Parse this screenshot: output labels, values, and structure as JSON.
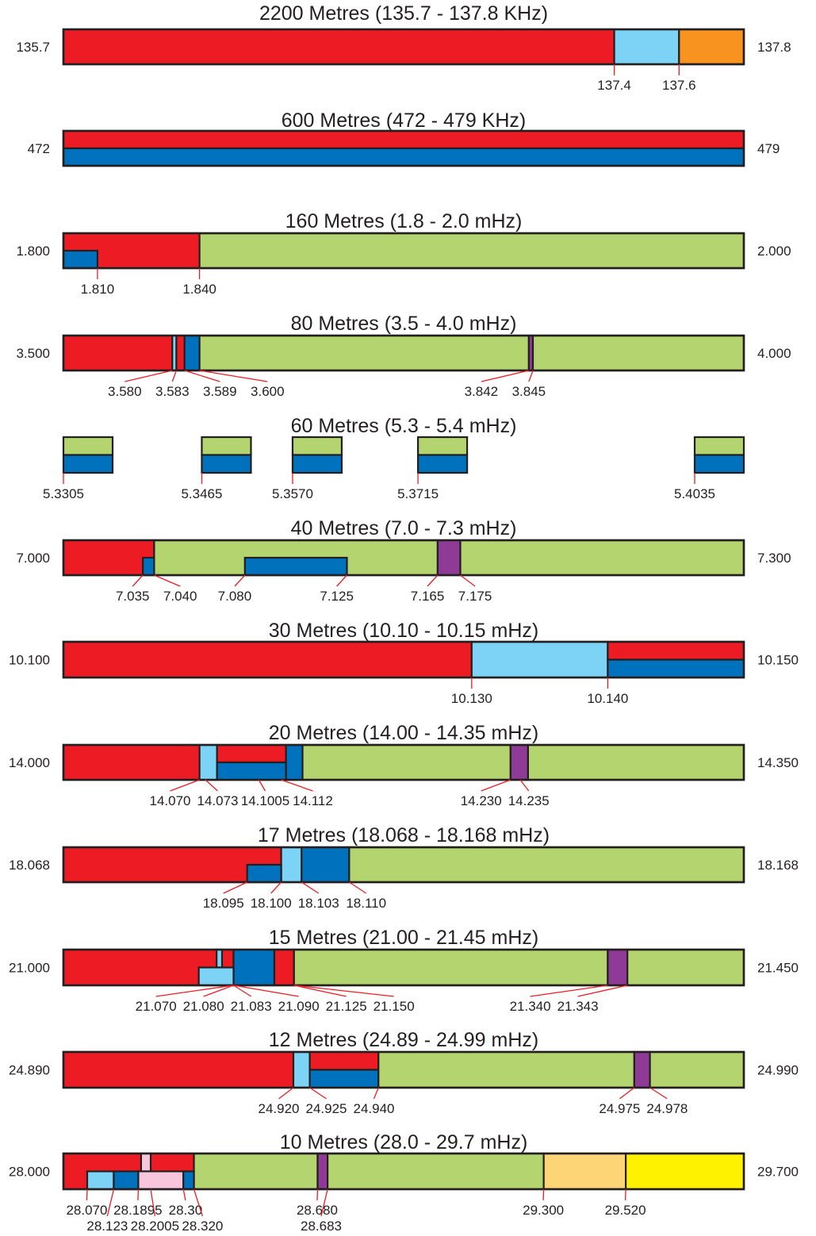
{
  "colors": {
    "red": "#ed1c24",
    "lightblue": "#7dd3f5",
    "blue": "#0071bc",
    "orange": "#f7931e",
    "green": "#b4d470",
    "purple": "#8e3a96",
    "pink": "#f7c6dc",
    "lightorange": "#fdd576",
    "yellow": "#fff200",
    "outline": "#231f20",
    "tickline": "#ed1c24"
  },
  "bands": [
    {
      "title": "2200 Metres (135.7 - 137.8 KHz)",
      "left_label": "135.7",
      "right_label": "137.8",
      "segments": [
        {
          "color": "red",
          "from": 135.7,
          "to": 137.4
        },
        {
          "color": "lightblue",
          "from": 137.4,
          "to": 137.6
        },
        {
          "color": "orange",
          "from": 137.6,
          "to": 137.8
        }
      ],
      "ticks": [
        {
          "label": "137.4",
          "at": 137.4
        },
        {
          "label": "137.6",
          "at": 137.6
        }
      ]
    },
    {
      "title": "600 Metres (472 - 479 KHz)",
      "left_label": "472",
      "right_label": "479",
      "segments": [
        {
          "color": "red",
          "from": 472,
          "to": 479,
          "rows": "top"
        },
        {
          "color": "blue",
          "from": 472,
          "to": 479,
          "rows": "bottom"
        }
      ],
      "ticks": []
    },
    {
      "title": "160 Metres (1.8 - 2.0 mHz)",
      "left_label": "1.800",
      "right_label": "2.000",
      "segments": [
        {
          "color": "red",
          "from": 1.8,
          "to": 1.84
        },
        {
          "color": "green",
          "from": 1.84,
          "to": 2.0
        },
        {
          "color": "blue",
          "from": 1.8,
          "to": 1.81,
          "rows": "bottom"
        }
      ],
      "ticks": [
        {
          "label": "1.810",
          "at": 1.81
        },
        {
          "label": "1.840",
          "at": 1.84
        }
      ]
    },
    {
      "title": "80 Metres (3.5 - 4.0 mHz)",
      "left_label": "3.500",
      "right_label": "4.000",
      "segments": [
        {
          "color": "red",
          "from": 3.5,
          "to": 3.58
        },
        {
          "color": "lightblue",
          "from": 3.58,
          "to": 3.583
        },
        {
          "color": "red",
          "from": 3.583,
          "to": 3.589
        },
        {
          "color": "blue",
          "from": 3.589,
          "to": 3.6
        },
        {
          "color": "green",
          "from": 3.6,
          "to": 3.842
        },
        {
          "color": "purple",
          "from": 3.842,
          "to": 3.845
        },
        {
          "color": "green",
          "from": 3.845,
          "to": 4.0
        }
      ],
      "ticks": [
        {
          "label": "3.580",
          "at": 3.58
        },
        {
          "label": "3.583",
          "at": 3.583
        },
        {
          "label": "3.589",
          "at": 3.589
        },
        {
          "label": "3.600",
          "at": 3.6
        },
        {
          "label": "3.842",
          "at": 3.842
        },
        {
          "label": "3.845",
          "at": 3.845
        }
      ]
    },
    {
      "title": "60 Metres (5.3 - 5.4 mHz)",
      "left_label": "",
      "right_label": "",
      "channels": [
        {
          "label": "5.3305",
          "at": 5.3305
        },
        {
          "label": "5.3465",
          "at": 5.3465
        },
        {
          "label": "5.3570",
          "at": 5.357
        },
        {
          "label": "5.3715",
          "at": 5.3715
        },
        {
          "label": "5.4035",
          "at": 5.4035
        }
      ]
    },
    {
      "title": "40 Metres (7.0 - 7.3 mHz)",
      "left_label": "7.000",
      "right_label": "7.300",
      "segments": [
        {
          "color": "red",
          "from": 7.0,
          "to": 7.04
        },
        {
          "color": "green",
          "from": 7.04,
          "to": 7.165
        },
        {
          "color": "purple",
          "from": 7.165,
          "to": 7.175
        },
        {
          "color": "green",
          "from": 7.175,
          "to": 7.3
        },
        {
          "color": "blue",
          "from": 7.035,
          "to": 7.04,
          "rows": "bottom"
        },
        {
          "color": "blue",
          "from": 7.08,
          "to": 7.125,
          "rows": "bottom"
        }
      ],
      "ticks": [
        {
          "label": "7.035",
          "at": 7.035
        },
        {
          "label": "7.040",
          "at": 7.04
        },
        {
          "label": "7.080",
          "at": 7.08
        },
        {
          "label": "7.125",
          "at": 7.125
        },
        {
          "label": "7.165",
          "at": 7.165
        },
        {
          "label": "7.175",
          "at": 7.175
        }
      ]
    },
    {
      "title": "30 Metres (10.10 - 10.15 mHz)",
      "left_label": "10.100",
      "right_label": "10.150",
      "segments": [
        {
          "color": "red",
          "from": 10.1,
          "to": 10.13
        },
        {
          "color": "lightblue",
          "from": 10.13,
          "to": 10.14
        },
        {
          "color": "red",
          "from": 10.14,
          "to": 10.15,
          "rows": "top"
        },
        {
          "color": "blue",
          "from": 10.14,
          "to": 10.15,
          "rows": "bottom"
        }
      ],
      "ticks": [
        {
          "label": "10.130",
          "at": 10.13
        },
        {
          "label": "10.140",
          "at": 10.14
        }
      ]
    },
    {
      "title": "20 Metres (14.00 - 14.35 mHz)",
      "left_label": "14.000",
      "right_label": "14.350",
      "segments": [
        {
          "color": "red",
          "from": 14.0,
          "to": 14.07
        },
        {
          "color": "lightblue",
          "from": 14.07,
          "to": 14.079
        },
        {
          "color": "red",
          "from": 14.079,
          "to": 14.1145,
          "rows": "top"
        },
        {
          "color": "blue",
          "from": 14.079,
          "to": 14.1145,
          "rows": "bottom"
        },
        {
          "color": "blue",
          "from": 14.1145,
          "to": 14.123
        },
        {
          "color": "green",
          "from": 14.123,
          "to": 14.23
        },
        {
          "color": "purple",
          "from": 14.23,
          "to": 14.239
        },
        {
          "color": "green",
          "from": 14.239,
          "to": 14.35
        }
      ],
      "ticks": [
        {
          "label": "14.070",
          "at": 14.07
        },
        {
          "label": "14.073",
          "at": 14.073
        },
        {
          "label": "14.1005",
          "at": 14.1005
        },
        {
          "label": "14.112",
          "at": 14.112
        },
        {
          "label": "14.230",
          "at": 14.23
        },
        {
          "label": "14.235",
          "at": 14.235
        }
      ]
    },
    {
      "title": "17 Metres (18.068 - 18.168 mHz)",
      "left_label": "18.068",
      "right_label": "18.168",
      "segments": [
        {
          "color": "red",
          "from": 18.068,
          "to": 18.1
        },
        {
          "color": "lightblue",
          "from": 18.1,
          "to": 18.103
        },
        {
          "color": "blue",
          "from": 18.103,
          "to": 18.11
        },
        {
          "color": "green",
          "from": 18.11,
          "to": 18.168
        },
        {
          "color": "blue",
          "from": 18.095,
          "to": 18.1,
          "rows": "bottom"
        }
      ],
      "ticks": [
        {
          "label": "18.095",
          "at": 18.095
        },
        {
          "label": "18.100",
          "at": 18.1
        },
        {
          "label": "18.103",
          "at": 18.103
        },
        {
          "label": "18.110",
          "at": 18.11
        }
      ]
    },
    {
      "title": "15 Metres (21.00 - 21.45 mHz)",
      "left_label": "21.000",
      "right_label": "21.450",
      "segments": [
        {
          "color": "red",
          "from": 21.0,
          "to": 21.1125
        },
        {
          "color": "blue",
          "from": 21.1125,
          "to": 21.1395
        },
        {
          "color": "red",
          "from": 21.1395,
          "to": 21.1525
        },
        {
          "color": "green",
          "from": 21.1525,
          "to": 21.36
        },
        {
          "color": "purple",
          "from": 21.36,
          "to": 21.373
        },
        {
          "color": "green",
          "from": 21.373,
          "to": 21.45
        },
        {
          "color": "lightblue",
          "from": 21.1013,
          "to": 21.1049,
          "rows": "top"
        },
        {
          "color": "lightblue",
          "from": 21.0895,
          "to": 21.1125,
          "rows": "bottom"
        }
      ],
      "ticks": [
        {
          "label": "21.070",
          "at": 21.07,
          "anchor_at": 21.1125
        },
        {
          "label": "21.080",
          "at": 21.08,
          "anchor_at": 21.1125
        },
        {
          "label": "21.083",
          "at": 21.083,
          "anchor_at": 21.1125
        },
        {
          "label": "21.090",
          "at": 21.09,
          "anchor_at": 21.1125
        },
        {
          "label": "21.125",
          "at": 21.125,
          "anchor_at": 21.1525
        },
        {
          "label": "21.150",
          "at": 21.15,
          "anchor_at": 21.1525
        },
        {
          "label": "21.340",
          "at": 21.34,
          "anchor_at": 21.36
        },
        {
          "label": "21.343",
          "at": 21.343,
          "anchor_at": 21.373
        }
      ]
    },
    {
      "title": "12 Metres (24.89 - 24.99 mHz)",
      "left_label": "24.890",
      "right_label": "24.990",
      "segments": [
        {
          "color": "red",
          "from": 24.89,
          "to": 24.9238
        },
        {
          "color": "lightblue",
          "from": 24.9238,
          "to": 24.9262
        },
        {
          "color": "red",
          "from": 24.9262,
          "to": 24.9363,
          "rows": "top"
        },
        {
          "color": "blue",
          "from": 24.9262,
          "to": 24.9363,
          "rows": "bottom"
        },
        {
          "color": "green",
          "from": 24.9363,
          "to": 24.9739
        },
        {
          "color": "purple",
          "from": 24.9739,
          "to": 24.9762
        },
        {
          "color": "green",
          "from": 24.9762,
          "to": 24.99
        }
      ],
      "ticks": [
        {
          "label": "24.920",
          "at": 24.92,
          "anchor_at": 24.9238
        },
        {
          "label": "24.925",
          "at": 24.925,
          "anchor_at": 24.9262
        },
        {
          "label": "24.940",
          "at": 24.94,
          "anchor_at": 24.9363
        },
        {
          "label": "24.975",
          "at": 24.975,
          "anchor_at": 24.9739
        },
        {
          "label": "24.978",
          "at": 24.978,
          "anchor_at": 24.9762
        }
      ]
    },
    {
      "title": "10 Metres (28.0 - 29.7 mHz)",
      "left_label": "28.000",
      "right_label": "29.700",
      "segments": [
        {
          "color": "red",
          "from": 28.0,
          "to": 28.326
        },
        {
          "color": "green",
          "from": 28.326,
          "to": 28.635
        },
        {
          "color": "purple",
          "from": 28.635,
          "to": 28.66
        },
        {
          "color": "green",
          "from": 28.66,
          "to": 29.2
        },
        {
          "color": "lightorange",
          "from": 29.2,
          "to": 29.405
        },
        {
          "color": "yellow",
          "from": 29.405,
          "to": 29.7
        },
        {
          "color": "pink",
          "from": 28.194,
          "to": 28.218,
          "rows": "top"
        },
        {
          "color": "lightblue",
          "from": 28.0594,
          "to": 28.1257,
          "rows": "bottom"
        },
        {
          "color": "blue",
          "from": 28.1257,
          "to": 28.1871,
          "rows": "bottom"
        },
        {
          "color": "pink",
          "from": 28.1871,
          "to": 28.2996,
          "rows": "bottom"
        },
        {
          "color": "blue",
          "from": 28.2996,
          "to": 28.326,
          "rows": "bottom"
        }
      ],
      "ticks": [
        {
          "label": "28.070",
          "at": 28.07,
          "anchor_at": 28.0594,
          "row": 1
        },
        {
          "label": "28.123",
          "at": 28.123,
          "anchor_at": 28.1257,
          "row": 2
        },
        {
          "label": "28.1895",
          "at": 28.1895,
          "anchor_at": 28.1871,
          "row": 1
        },
        {
          "label": "28.2005",
          "at": 28.2005,
          "anchor_at": 28.218,
          "row": 2
        },
        {
          "label": "28.30",
          "at": 28.3,
          "anchor_at": 28.2996,
          "row": 1
        },
        {
          "label": "28.320",
          "at": 28.32,
          "anchor_at": 28.326,
          "row": 2
        },
        {
          "label": "28.680",
          "at": 28.68,
          "anchor_at": 28.635,
          "row": 1
        },
        {
          "label": "28.683",
          "at": 28.683,
          "anchor_at": 28.66,
          "row": 2
        },
        {
          "label": "29.300",
          "at": 29.3,
          "anchor_at": 29.2,
          "row": 1
        },
        {
          "label": "29.520",
          "at": 29.52,
          "anchor_at": 29.405,
          "row": 1
        }
      ]
    }
  ]
}
